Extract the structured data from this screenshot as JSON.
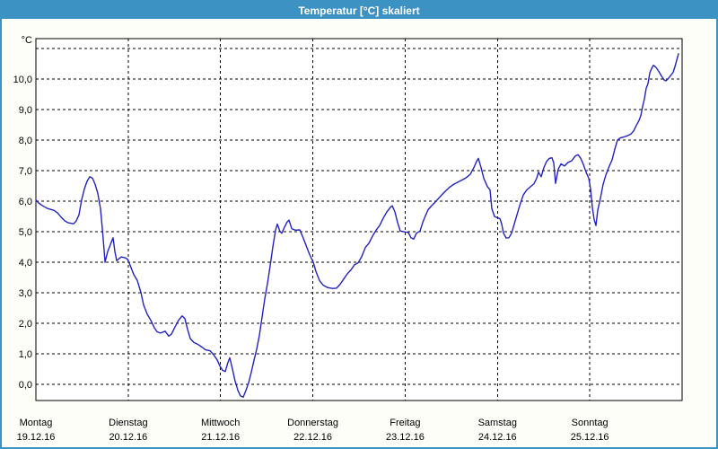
{
  "window": {
    "title": "Temperatur [°C] skaliert"
  },
  "colors": {
    "titlebar_bg": "#3d92c4",
    "window_border": "#3d92c4",
    "page_bg": "#fcfef7",
    "plot_bg": "#ffffff",
    "line": "#2222c2",
    "grid": "#000000",
    "title_text": "#ffffff",
    "label_text": "#000000"
  },
  "chart_data": {
    "type": "line",
    "title": "Temperatur [°C] skaliert",
    "ylabel": "°C",
    "xlabel": "",
    "legend": "none",
    "grid": "dashed",
    "ylim": [
      -0.53,
      11.32
    ],
    "xlim_days": [
      0,
      7
    ],
    "y_ticks": [
      {
        "v": 0,
        "label": "0,0"
      },
      {
        "v": 1,
        "label": "1,0"
      },
      {
        "v": 2,
        "label": "2,0"
      },
      {
        "v": 3,
        "label": "3,0"
      },
      {
        "v": 4,
        "label": "4,0"
      },
      {
        "v": 5,
        "label": "5,0"
      },
      {
        "v": 6,
        "label": "6,0"
      },
      {
        "v": 7,
        "label": "7,0"
      },
      {
        "v": 8,
        "label": "8,0"
      },
      {
        "v": 9,
        "label": "9,0"
      },
      {
        "v": 10,
        "label": "10,0"
      }
    ],
    "extra_unlabeled_gridlines": [
      11
    ],
    "x_ticks": [
      {
        "day": 0,
        "name": "Montag",
        "date": "19.12.16"
      },
      {
        "day": 1,
        "name": "Dienstag",
        "date": "20.12.16"
      },
      {
        "day": 2,
        "name": "Mittwoch",
        "date": "21.12.16"
      },
      {
        "day": 3,
        "name": "Donnerstag",
        "date": "22.12.16"
      },
      {
        "day": 4,
        "name": "Freitag",
        "date": "23.12.16"
      },
      {
        "day": 5,
        "name": "Samstag",
        "date": "24.12.16"
      },
      {
        "day": 6,
        "name": "Sonntag",
        "date": "25.12.16"
      }
    ],
    "series": [
      {
        "name": "Temperatur",
        "points": [
          [
            0.0,
            6.04
          ],
          [
            0.029,
            5.94
          ],
          [
            0.068,
            5.86
          ],
          [
            0.126,
            5.76
          ],
          [
            0.194,
            5.7
          ],
          [
            0.233,
            5.62
          ],
          [
            0.272,
            5.48
          ],
          [
            0.311,
            5.36
          ],
          [
            0.35,
            5.29
          ],
          [
            0.408,
            5.26
          ],
          [
            0.437,
            5.35
          ],
          [
            0.467,
            5.55
          ],
          [
            0.496,
            6.05
          ],
          [
            0.525,
            6.4
          ],
          [
            0.554,
            6.65
          ],
          [
            0.583,
            6.8
          ],
          [
            0.613,
            6.75
          ],
          [
            0.642,
            6.55
          ],
          [
            0.671,
            6.25
          ],
          [
            0.7,
            5.75
          ],
          [
            0.719,
            5.1
          ],
          [
            0.739,
            4.4
          ],
          [
            0.749,
            4.0
          ],
          [
            0.778,
            4.35
          ],
          [
            0.817,
            4.65
          ],
          [
            0.836,
            4.8
          ],
          [
            0.856,
            4.35
          ],
          [
            0.875,
            4.05
          ],
          [
            0.894,
            4.1
          ],
          [
            0.924,
            4.17
          ],
          [
            0.963,
            4.15
          ],
          [
            0.992,
            4.1
          ],
          [
            1.021,
            3.9
          ],
          [
            1.06,
            3.6
          ],
          [
            1.099,
            3.4
          ],
          [
            1.138,
            3.0
          ],
          [
            1.167,
            2.6
          ],
          [
            1.206,
            2.3
          ],
          [
            1.244,
            2.1
          ],
          [
            1.283,
            1.85
          ],
          [
            1.313,
            1.72
          ],
          [
            1.351,
            1.68
          ],
          [
            1.4,
            1.74
          ],
          [
            1.439,
            1.58
          ],
          [
            1.468,
            1.64
          ],
          [
            1.507,
            1.88
          ],
          [
            1.546,
            2.1
          ],
          [
            1.585,
            2.24
          ],
          [
            1.614,
            2.15
          ],
          [
            1.643,
            1.8
          ],
          [
            1.672,
            1.5
          ],
          [
            1.711,
            1.37
          ],
          [
            1.76,
            1.3
          ],
          [
            1.799,
            1.22
          ],
          [
            1.838,
            1.13
          ],
          [
            1.886,
            1.1
          ],
          [
            1.925,
            0.97
          ],
          [
            1.964,
            0.8
          ],
          [
            1.993,
            0.6
          ],
          [
            2.022,
            0.46
          ],
          [
            2.051,
            0.42
          ],
          [
            2.081,
            0.72
          ],
          [
            2.1,
            0.87
          ],
          [
            2.129,
            0.5
          ],
          [
            2.158,
            0.1
          ],
          [
            2.188,
            -0.2
          ],
          [
            2.217,
            -0.38
          ],
          [
            2.246,
            -0.42
          ],
          [
            2.275,
            -0.2
          ],
          [
            2.304,
            0.05
          ],
          [
            2.333,
            0.4
          ],
          [
            2.363,
            0.8
          ],
          [
            2.392,
            1.15
          ],
          [
            2.421,
            1.6
          ],
          [
            2.45,
            2.2
          ],
          [
            2.479,
            2.8
          ],
          [
            2.508,
            3.3
          ],
          [
            2.538,
            3.9
          ],
          [
            2.567,
            4.5
          ],
          [
            2.596,
            5.05
          ],
          [
            2.615,
            5.25
          ],
          [
            2.644,
            5.0
          ],
          [
            2.664,
            4.95
          ],
          [
            2.693,
            5.15
          ],
          [
            2.722,
            5.32
          ],
          [
            2.742,
            5.38
          ],
          [
            2.771,
            5.1
          ],
          [
            2.81,
            5.05
          ],
          [
            2.858,
            5.06
          ],
          [
            2.888,
            4.85
          ],
          [
            2.926,
            4.55
          ],
          [
            2.965,
            4.25
          ],
          [
            3.004,
            4.0
          ],
          [
            3.033,
            3.7
          ],
          [
            3.072,
            3.4
          ],
          [
            3.111,
            3.25
          ],
          [
            3.16,
            3.17
          ],
          [
            3.208,
            3.14
          ],
          [
            3.257,
            3.15
          ],
          [
            3.296,
            3.28
          ],
          [
            3.335,
            3.45
          ],
          [
            3.374,
            3.62
          ],
          [
            3.413,
            3.75
          ],
          [
            3.452,
            3.92
          ],
          [
            3.49,
            3.98
          ],
          [
            3.529,
            4.18
          ],
          [
            3.568,
            4.48
          ],
          [
            3.607,
            4.62
          ],
          [
            3.646,
            4.85
          ],
          [
            3.685,
            5.05
          ],
          [
            3.724,
            5.2
          ],
          [
            3.763,
            5.45
          ],
          [
            3.802,
            5.65
          ],
          [
            3.84,
            5.8
          ],
          [
            3.86,
            5.85
          ],
          [
            3.889,
            5.65
          ],
          [
            3.918,
            5.3
          ],
          [
            3.947,
            5.02
          ],
          [
            3.986,
            5.0
          ],
          [
            4.035,
            4.97
          ],
          [
            4.064,
            4.8
          ],
          [
            4.093,
            4.76
          ],
          [
            4.122,
            4.95
          ],
          [
            4.161,
            5.02
          ],
          [
            4.19,
            5.3
          ],
          [
            4.219,
            5.52
          ],
          [
            4.249,
            5.72
          ],
          [
            4.287,
            5.85
          ],
          [
            4.336,
            6.0
          ],
          [
            4.385,
            6.17
          ],
          [
            4.433,
            6.32
          ],
          [
            4.482,
            6.46
          ],
          [
            4.531,
            6.56
          ],
          [
            4.589,
            6.65
          ],
          [
            4.657,
            6.76
          ],
          [
            4.706,
            6.88
          ],
          [
            4.744,
            7.1
          ],
          [
            4.774,
            7.3
          ],
          [
            4.793,
            7.4
          ],
          [
            4.822,
            7.1
          ],
          [
            4.851,
            6.75
          ],
          [
            4.89,
            6.48
          ],
          [
            4.919,
            6.37
          ],
          [
            4.939,
            5.75
          ],
          [
            4.968,
            5.5
          ],
          [
            4.997,
            5.46
          ],
          [
            5.026,
            5.43
          ],
          [
            5.046,
            5.25
          ],
          [
            5.065,
            4.95
          ],
          [
            5.094,
            4.79
          ],
          [
            5.124,
            4.8
          ],
          [
            5.153,
            4.95
          ],
          [
            5.182,
            5.25
          ],
          [
            5.211,
            5.55
          ],
          [
            5.24,
            5.85
          ],
          [
            5.279,
            6.2
          ],
          [
            5.318,
            6.37
          ],
          [
            5.357,
            6.47
          ],
          [
            5.396,
            6.57
          ],
          [
            5.425,
            6.75
          ],
          [
            5.444,
            6.95
          ],
          [
            5.474,
            6.8
          ],
          [
            5.503,
            7.1
          ],
          [
            5.532,
            7.3
          ],
          [
            5.561,
            7.4
          ],
          [
            5.59,
            7.42
          ],
          [
            5.61,
            7.25
          ],
          [
            5.629,
            6.58
          ],
          [
            5.658,
            7.05
          ],
          [
            5.688,
            7.22
          ],
          [
            5.726,
            7.15
          ],
          [
            5.765,
            7.27
          ],
          [
            5.804,
            7.32
          ],
          [
            5.843,
            7.48
          ],
          [
            5.872,
            7.52
          ],
          [
            5.902,
            7.4
          ],
          [
            5.931,
            7.2
          ],
          [
            5.96,
            6.95
          ],
          [
            5.989,
            6.75
          ],
          [
            6.008,
            6.4
          ],
          [
            6.028,
            5.8
          ],
          [
            6.047,
            5.4
          ],
          [
            6.067,
            5.2
          ],
          [
            6.086,
            5.7
          ],
          [
            6.115,
            6.1
          ],
          [
            6.144,
            6.55
          ],
          [
            6.174,
            6.85
          ],
          [
            6.212,
            7.15
          ],
          [
            6.242,
            7.35
          ],
          [
            6.271,
            7.7
          ],
          [
            6.3,
            8.0
          ],
          [
            6.329,
            8.07
          ],
          [
            6.368,
            8.1
          ],
          [
            6.407,
            8.14
          ],
          [
            6.446,
            8.2
          ],
          [
            6.475,
            8.3
          ],
          [
            6.504,
            8.48
          ],
          [
            6.534,
            8.65
          ],
          [
            6.553,
            8.8
          ],
          [
            6.572,
            9.1
          ],
          [
            6.592,
            9.35
          ],
          [
            6.611,
            9.7
          ],
          [
            6.631,
            9.85
          ],
          [
            6.65,
            10.2
          ],
          [
            6.67,
            10.35
          ],
          [
            6.689,
            10.45
          ],
          [
            6.718,
            10.38
          ],
          [
            6.747,
            10.25
          ],
          [
            6.776,
            10.1
          ],
          [
            6.806,
            9.97
          ],
          [
            6.825,
            9.94
          ],
          [
            6.854,
            10.03
          ],
          [
            6.883,
            10.14
          ],
          [
            6.903,
            10.22
          ],
          [
            6.922,
            10.4
          ],
          [
            6.942,
            10.62
          ],
          [
            6.961,
            10.83
          ]
        ]
      }
    ]
  }
}
